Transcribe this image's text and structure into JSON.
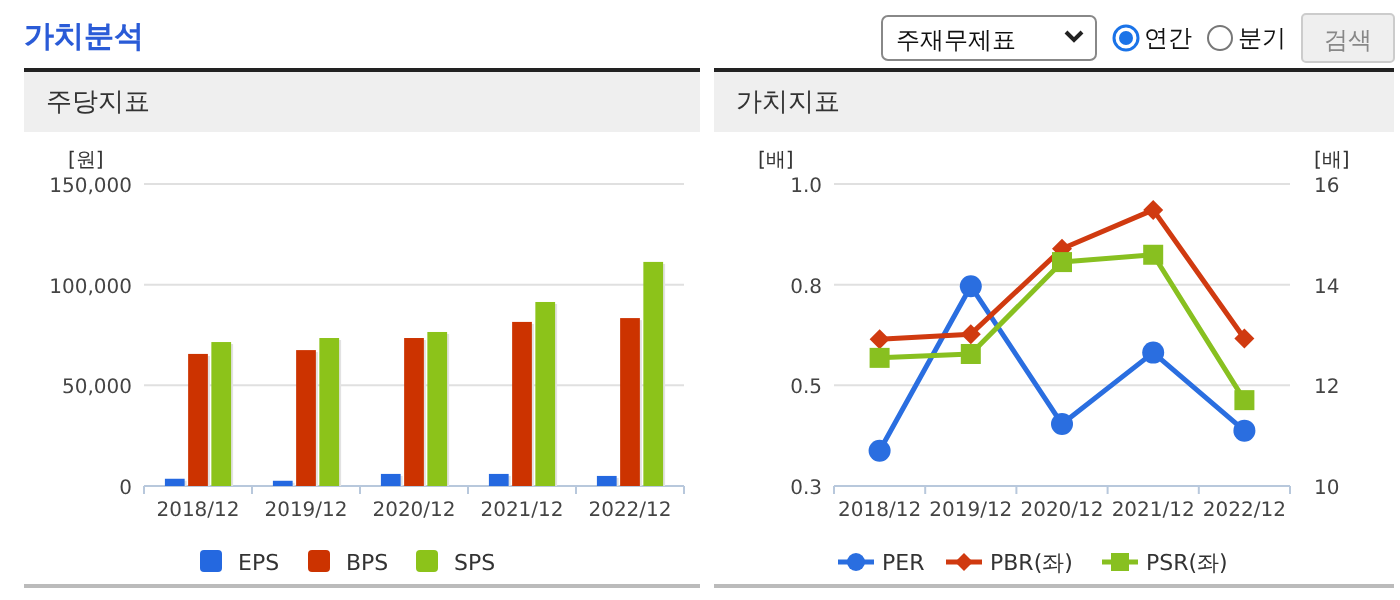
{
  "chart_data": [
    {
      "type": "bar",
      "title": "주당지표",
      "ylabel": "[원]",
      "annotations": [
        "가치분석",
        "주재무제표",
        "연간",
        "분기",
        "검색"
      ],
      "categories": [
        "2018/12",
        "2019/12",
        "2020/12",
        "2021/12",
        "2022/12"
      ],
      "series": [
        {
          "name": "EPS",
          "color": "#2468e0",
          "values": [
            3600,
            2600,
            6000,
            6000,
            5000
          ]
        },
        {
          "name": "BPS",
          "color": "#cc3300",
          "values": [
            65600,
            67500,
            73500,
            81500,
            83400
          ]
        },
        {
          "name": "SPS",
          "color": "#8cc31a",
          "values": [
            71500,
            73500,
            76500,
            91400,
            111300
          ]
        }
      ],
      "ylim": [
        0,
        150000
      ],
      "yticks": [
        0,
        {
          "value": 50000,
          "label": "50,000"
        },
        {
          "value": 100000,
          "label": "100,000"
        },
        {
          "value": 150000,
          "label": "150,000"
        }
      ],
      "grid": "y",
      "legend": "bottom"
    },
    {
      "type": "line",
      "title": "가치지표",
      "ylabel": "[배]",
      "y2label": "[배]",
      "categories": [
        "2018/12",
        "2019/12",
        "2020/12",
        "2021/12",
        "2022/12"
      ],
      "series": [
        {
          "name": "PER",
          "color": "#2a6ee0",
          "axis": "y2",
          "marker": "circle",
          "values": [
            10.7,
            13.97,
            11.23,
            12.65,
            11.1
          ]
        },
        {
          "name": "PBR(좌)",
          "color": "#d03a10",
          "marker": "diamond",
          "values": [
            0.64,
            0.652,
            0.85,
            0.94,
            0.642
          ]
        },
        {
          "name": "PSR(좌)",
          "color": "#88c020",
          "marker": "square",
          "values": [
            0.597,
            0.606,
            0.819,
            0.836,
            0.499
          ]
        }
      ],
      "ylim": [
        0.3,
        1.0
      ],
      "yticks": [
        0.3,
        {
          "value": 0.5333,
          "label": "0.5"
        },
        {
          "value": 0.7667,
          "label": "0.8"
        },
        {
          "value": 1.0,
          "label": "1.0"
        }
      ],
      "y2lim": [
        10,
        16
      ],
      "y2ticks": [
        10,
        12,
        14,
        16
      ],
      "grid": "y",
      "legend": "bottom",
      "line_style": "solid"
    }
  ]
}
